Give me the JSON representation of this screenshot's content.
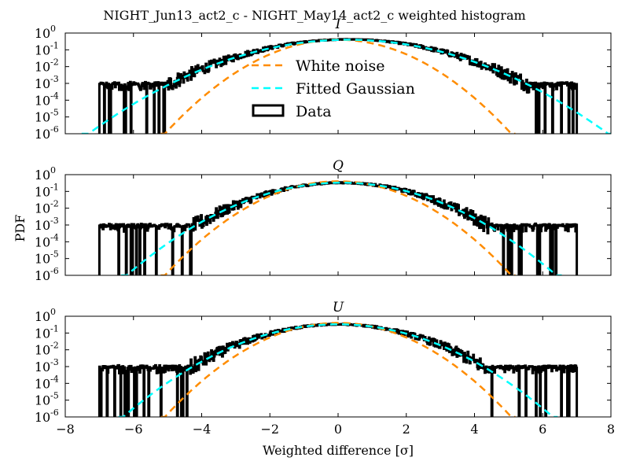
{
  "chart_data": {
    "type": "histogram",
    "title": "NIGHT_Jun13_act2_c - NIGHT_May14_act2_c weighted histogram",
    "xlabel": "Weighted difference [σ]",
    "ylabel": "PDF",
    "xlim": [
      -8,
      8
    ],
    "ylim": [
      1e-06,
      1
    ],
    "yscale": "log",
    "xticks": [
      "−8",
      "−6",
      "−4",
      "−2",
      "0",
      "2",
      "4",
      "6",
      "8"
    ],
    "ytick_base": "10",
    "ytick_exponents": [
      "0",
      "-1",
      "-2",
      "-3",
      "-4",
      "-5",
      "-6"
    ],
    "legend": {
      "placement": "upper-center of first panel",
      "entries": [
        {
          "label": "White noise",
          "style": "dashed",
          "color": "#ff8c00"
        },
        {
          "label": "Fitted Gaussian",
          "style": "dashed",
          "color": "#00ffff"
        },
        {
          "label": "Data",
          "style": "box",
          "color": "#000000"
        }
      ]
    },
    "panels": [
      {
        "title": "I",
        "white_noise": {
          "mean": 0.0,
          "sigma": 1.0,
          "amplitude": 0.4
        },
        "fitted_gaussian": {
          "mean": 0.3,
          "sigma": 1.5,
          "amplitude": 0.4
        },
        "data": {
          "mean": 0.3,
          "sigma": 1.5,
          "amplitude": 0.42,
          "range": [
            -7.0,
            7.0
          ],
          "floor": 0.0008
        }
      },
      {
        "title": "Q",
        "white_noise": {
          "mean": 0.0,
          "sigma": 1.0,
          "amplitude": 0.4
        },
        "fitted_gaussian": {
          "mean": 0.1,
          "sigma": 1.25,
          "amplitude": 0.33
        },
        "data": {
          "mean": 0.1,
          "sigma": 1.25,
          "amplitude": 0.33,
          "range": [
            -7.0,
            7.0
          ],
          "floor": 0.0008
        }
      },
      {
        "title": "U",
        "white_noise": {
          "mean": 0.0,
          "sigma": 1.0,
          "amplitude": 0.4
        },
        "fitted_gaussian": {
          "mean": 0.0,
          "sigma": 1.25,
          "amplitude": 0.33
        },
        "data": {
          "mean": 0.0,
          "sigma": 1.25,
          "amplitude": 0.33,
          "range": [
            -7.0,
            7.0
          ],
          "floor": 0.0008
        }
      }
    ]
  }
}
